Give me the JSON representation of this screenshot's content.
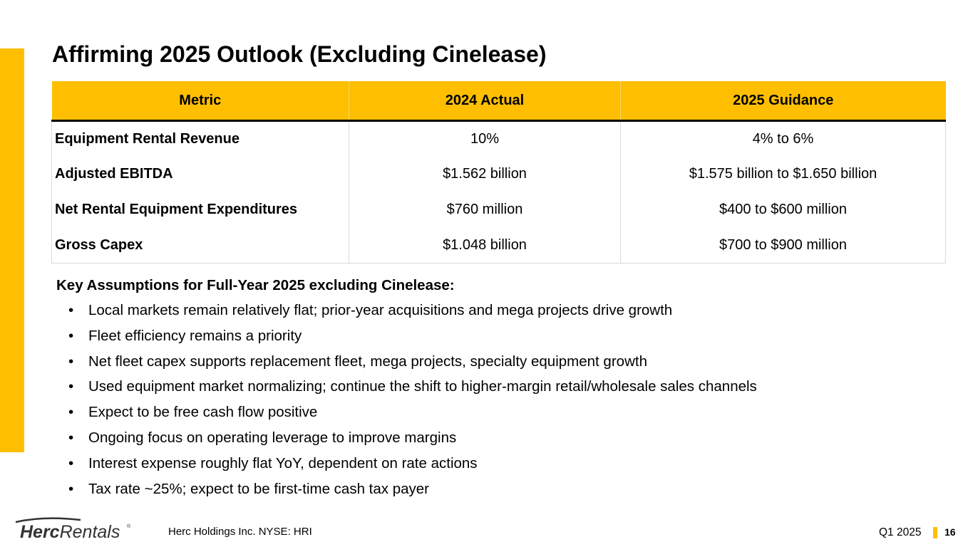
{
  "slide": {
    "title": "Affirming 2025 Outlook (Excluding Cinelease)",
    "accent_color": "#FFBF00"
  },
  "table": {
    "headers": [
      "Metric",
      "2024 Actual",
      "2025 Guidance"
    ],
    "rows": [
      {
        "metric": "Equipment Rental Revenue",
        "actual": "10%",
        "guidance": "4% to 6%"
      },
      {
        "metric": "Adjusted EBITDA",
        "actual": "$1.562 billion",
        "guidance": "$1.575 billion to $1.650 billion"
      },
      {
        "metric": "Net Rental Equipment Expenditures",
        "actual": "$760 million",
        "guidance": "$400 to $600 million"
      },
      {
        "metric": "Gross Capex",
        "actual": "$1.048 billion",
        "guidance": "$700 to $900 million"
      }
    ]
  },
  "assumptions": {
    "heading": "Key Assumptions for Full-Year 2025 excluding Cinelease:",
    "bullet_char": "•",
    "items": [
      "Local markets remain relatively flat; prior-year acquisitions and mega projects drive growth",
      "Fleet efficiency remains a priority",
      "Net fleet capex supports replacement fleet, mega projects, specialty equipment growth",
      "Used equipment market normalizing; continue the shift to higher-margin retail/wholesale sales channels",
      "Expect to be free cash flow positive",
      "Ongoing focus on operating leverage to improve margins",
      "Interest expense roughly flat YoY, dependent on rate actions",
      "Tax rate ~25%; expect to be first-time cash tax payer"
    ]
  },
  "footer": {
    "logo_bold": "Herc",
    "logo_light": "Rentals",
    "logo_mark": "®",
    "company": "Herc Holdings Inc.  NYSE: HRI",
    "quarter": "Q1 2025",
    "page_number": "16"
  }
}
